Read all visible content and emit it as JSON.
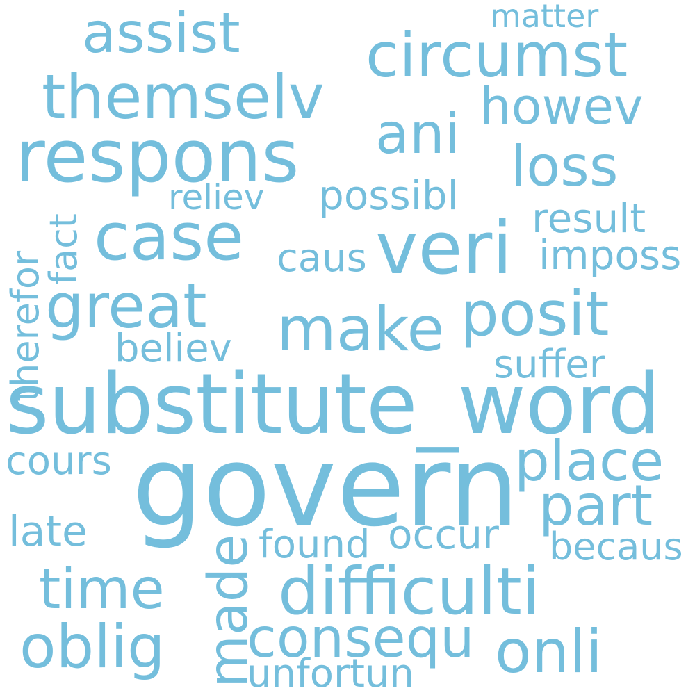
{
  "word_color": "#74bedc",
  "background": "#ffffff",
  "words": [
    {
      "text": "govern",
      "orientation": "horizontal"
    },
    {
      "text": "substitute_word",
      "orientation": "horizontal"
    },
    {
      "text": "respons",
      "orientation": "horizontal"
    },
    {
      "text": "circumst",
      "orientation": "horizontal"
    },
    {
      "text": "themselv",
      "orientation": "horizontal"
    },
    {
      "text": "difficulti",
      "orientation": "horizontal"
    },
    {
      "text": "veri",
      "orientation": "horizontal"
    },
    {
      "text": "case",
      "orientation": "horizontal"
    },
    {
      "text": "posit",
      "orientation": "horizontal"
    },
    {
      "text": "make",
      "orientation": "horizontal"
    },
    {
      "text": "great",
      "orientation": "horizontal"
    },
    {
      "text": "assist",
      "orientation": "horizontal"
    },
    {
      "text": "ani",
      "orientation": "horizontal"
    },
    {
      "text": "loss",
      "orientation": "horizontal"
    },
    {
      "text": "howev",
      "orientation": "horizontal"
    },
    {
      "text": "place",
      "orientation": "horizontal"
    },
    {
      "text": "part",
      "orientation": "horizontal"
    },
    {
      "text": "time",
      "orientation": "horizontal"
    },
    {
      "text": "oblig",
      "orientation": "horizontal"
    },
    {
      "text": "consequ",
      "orientation": "horizontal"
    },
    {
      "text": "onli",
      "orientation": "horizontal"
    },
    {
      "text": "made",
      "orientation": "vertical"
    },
    {
      "text": "possibl",
      "orientation": "horizontal"
    },
    {
      "text": "result",
      "orientation": "horizontal"
    },
    {
      "text": "imposs",
      "orientation": "horizontal"
    },
    {
      "text": "caus",
      "orientation": "horizontal"
    },
    {
      "text": "reliev",
      "orientation": "horizontal"
    },
    {
      "text": "believ",
      "orientation": "horizontal"
    },
    {
      "text": "suffer",
      "orientation": "horizontal"
    },
    {
      "text": "cours",
      "orientation": "horizontal"
    },
    {
      "text": "late",
      "orientation": "horizontal"
    },
    {
      "text": "found",
      "orientation": "horizontal"
    },
    {
      "text": "occur",
      "orientation": "horizontal"
    },
    {
      "text": "becaus",
      "orientation": "horizontal"
    },
    {
      "text": "unfortun",
      "orientation": "horizontal"
    },
    {
      "text": "matter",
      "orientation": "horizontal"
    },
    {
      "text": "therefor",
      "orientation": "vertical"
    },
    {
      "text": "fact",
      "orientation": "vertical"
    }
  ]
}
